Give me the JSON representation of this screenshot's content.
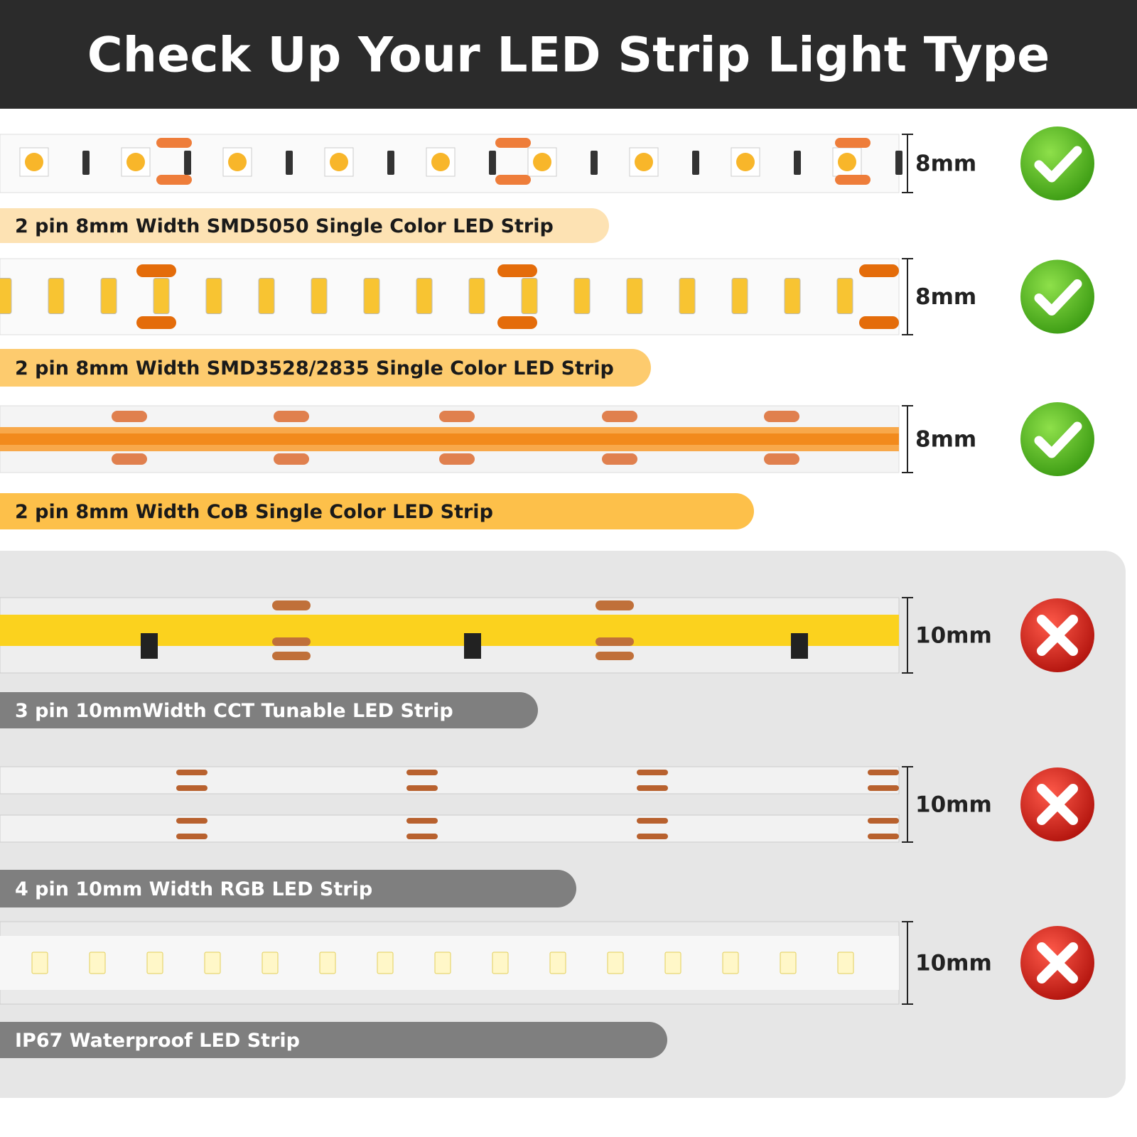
{
  "header": {
    "title": "Check Up Your LED Strip Light Type"
  },
  "items": [
    {
      "label": "2 pin 8mm Width SMD5050 Single Color LED Strip",
      "width": "8mm"
    },
    {
      "label": "2 pin 8mm Width SMD3528/2835 Single Color LED Strip",
      "width": "8mm"
    },
    {
      "label": "2 pin 8mm Width CoB Single Color LED Strip",
      "width": "8mm"
    },
    {
      "label": "3 pin 10mmWidth CCT Tunable LED Strip",
      "width": "10mm"
    },
    {
      "label": "4 pin 10mm Width RGB LED Strip",
      "width": "10mm"
    },
    {
      "label": "IP67 Waterproof LED Strip",
      "width": "10mm"
    }
  ]
}
